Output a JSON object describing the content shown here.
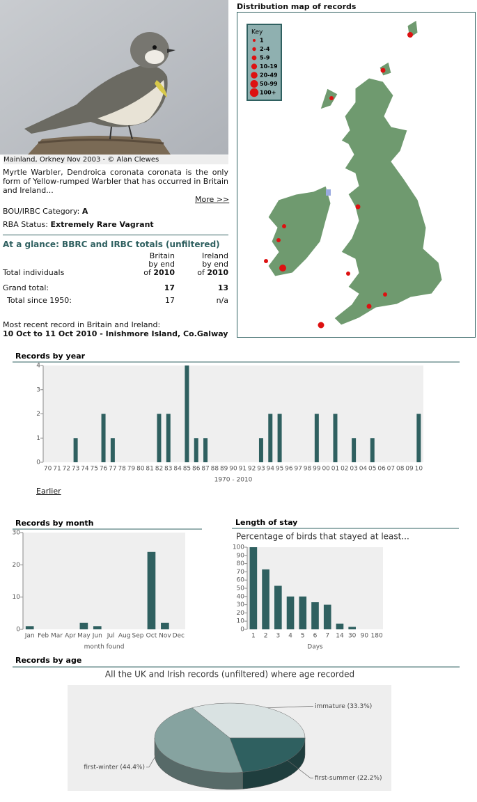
{
  "photo": {
    "caption": "Mainland, Orkney Nov 2003 - © Alan Clewes"
  },
  "species": {
    "description": "Myrtle Warbler, Dendroica coronata coronata is the only form of Yellow-rumped Warbler that has occurred in Britain and Ireland...",
    "more_link": "More >>",
    "category_label": "BOU/IRBC Category:",
    "category": "A",
    "status_label": "RBA Status:",
    "status": "Extremely Rare Vagrant"
  },
  "totals": {
    "title": "At a glance: BBRC and IRBC totals (unfiltered)",
    "columns": [
      {
        "name": "Britain",
        "by": "by end",
        "of": "of",
        "year": "2010"
      },
      {
        "name": "Ireland",
        "by": "by end",
        "of": "of",
        "year": "2010"
      }
    ],
    "rows": [
      {
        "label": "Total individuals"
      },
      {
        "label": "Grand total:",
        "values": [
          "17",
          "13"
        ]
      },
      {
        "label": "Total since 1950:",
        "values": [
          "17",
          "n/a"
        ]
      }
    ]
  },
  "recent": {
    "label": "Most recent record in Britain and Ireland:",
    "record": "10 Oct to 11 Oct 2010 - Inishmore Island, Co.Galway"
  },
  "map": {
    "title": "Distribution map of records",
    "key_title": "Key",
    "key": [
      "1",
      "2-4",
      "5-9",
      "10-19",
      "20-49",
      "50-99",
      "100+"
    ]
  },
  "earlier_link": "Earlier",
  "chart_data": [
    {
      "type": "bar",
      "title": "Records by year",
      "categories": [
        "70",
        "71",
        "72",
        "73",
        "74",
        "75",
        "76",
        "77",
        "78",
        "79",
        "80",
        "81",
        "82",
        "83",
        "84",
        "85",
        "86",
        "87",
        "88",
        "89",
        "90",
        "91",
        "92",
        "93",
        "94",
        "95",
        "96",
        "97",
        "98",
        "99",
        "00",
        "01",
        "02",
        "03",
        "04",
        "05",
        "06",
        "07",
        "08",
        "09",
        "10"
      ],
      "values": [
        0,
        0,
        0,
        1,
        0,
        0,
        2,
        1,
        0,
        0,
        0,
        0,
        2,
        2,
        0,
        4,
        1,
        1,
        0,
        0,
        0,
        0,
        0,
        1,
        2,
        2,
        0,
        0,
        0,
        2,
        0,
        2,
        0,
        1,
        0,
        1,
        0,
        0,
        0,
        0,
        2
      ],
      "color": "#2f6060",
      "xlabel": "1970 - 2010",
      "ylim": [
        0,
        4
      ],
      "yticks": [
        0,
        1,
        2,
        3,
        4
      ]
    },
    {
      "type": "bar",
      "title": "Records by month",
      "categories": [
        "Jan",
        "Feb",
        "Mar",
        "Apr",
        "May",
        "Jun",
        "Jul",
        "Aug",
        "Sep",
        "Oct",
        "Nov",
        "Dec"
      ],
      "values": [
        1,
        0,
        0,
        0,
        2,
        1,
        0,
        0,
        0,
        24,
        2,
        0
      ],
      "color": "#2f6060",
      "xlabel": "month found",
      "ylim": [
        0,
        30
      ],
      "yticks": [
        0,
        10,
        20,
        30
      ]
    },
    {
      "type": "bar",
      "title": "Length of stay",
      "subtitle": "Percentage of birds that stayed at least...",
      "categories": [
        "1",
        "2",
        "3",
        "4",
        "5",
        "6",
        "7",
        "14",
        "30",
        "90",
        "180"
      ],
      "values": [
        100,
        73,
        53,
        40,
        40,
        33,
        30,
        7,
        3,
        0,
        0
      ],
      "color": "#2f6060",
      "xlabel": "Days",
      "ylim": [
        0,
        100
      ],
      "yticks": [
        0,
        10,
        20,
        30,
        40,
        50,
        60,
        70,
        80,
        90,
        100
      ]
    },
    {
      "type": "pie",
      "title": "Records by age",
      "subtitle": "All the UK and Irish records (unfiltered) where age recorded",
      "values": [
        33.3,
        22.2,
        44.4
      ],
      "value_labels": [
        "immature (33.3%)",
        "first-summer (22.2%)",
        "first-winter (44.4%)"
      ],
      "colors": [
        "#d9e2e2",
        "#2f6060",
        "#86a3a0"
      ]
    }
  ]
}
